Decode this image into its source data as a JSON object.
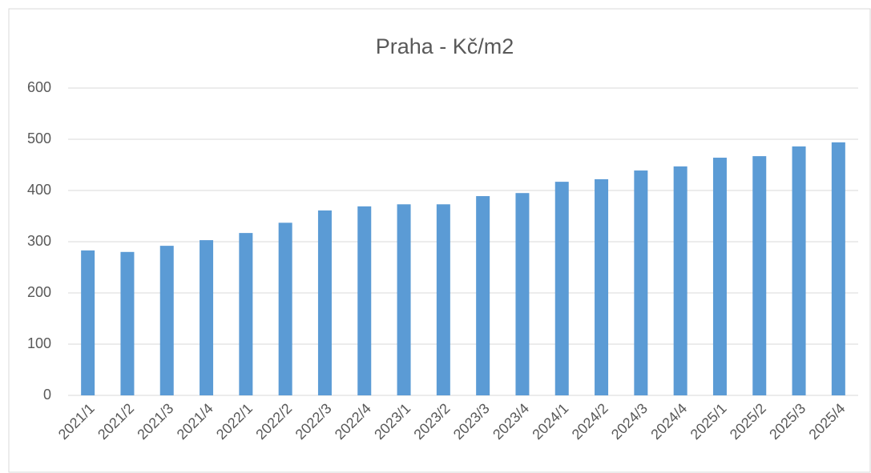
{
  "chart_data": {
    "type": "bar",
    "title": "Praha - Kč/m2",
    "categories": [
      "2021/1",
      "2021/2",
      "2021/3",
      "2021/4",
      "2022/1",
      "2022/2",
      "2022/3",
      "2022/4",
      "2023/1",
      "2023/2",
      "2023/3",
      "2023/4",
      "2024/1",
      "2024/2",
      "2024/3",
      "2024/4",
      "2025/1",
      "2025/2",
      "2025/3",
      "2025/4"
    ],
    "values": [
      283,
      280,
      292,
      303,
      317,
      337,
      361,
      369,
      373,
      373,
      389,
      395,
      417,
      422,
      439,
      447,
      464,
      467,
      486,
      494
    ],
    "color": "#5b9bd5",
    "ylim": [
      0,
      600
    ],
    "yticks": [
      0,
      100,
      200,
      300,
      400,
      500,
      600
    ],
    "grid": true
  }
}
